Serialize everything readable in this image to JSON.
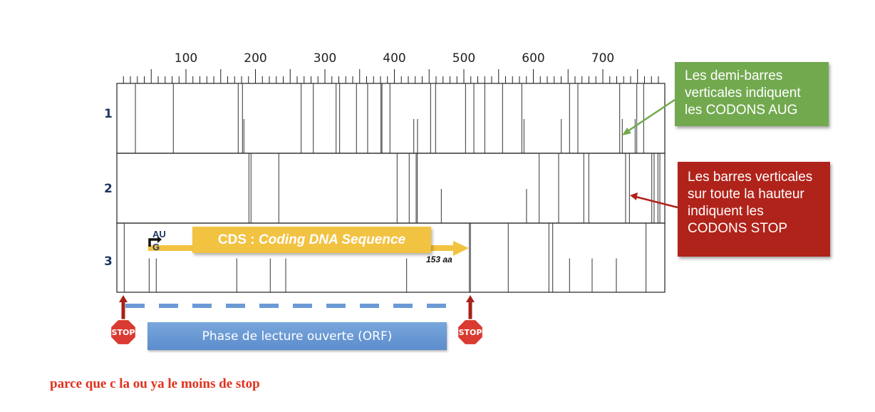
{
  "chart_data": {
    "type": "diagram",
    "axis": {
      "min": 0,
      "max": 789,
      "minor_step": 10,
      "major_step": 50,
      "tick_labels": [
        100,
        200,
        300,
        400,
        500,
        600,
        700
      ]
    },
    "rows": [
      {
        "label": "1",
        "stop_codons": [
          27.2,
          81.8,
          175.2,
          181.3,
          265.8,
          283.3,
          316.1,
          321.2,
          345.4,
          361.5,
          380.7,
          382.1,
          393.6,
          452.1,
          459.3,
          502.4,
          514.4,
          530.1,
          555.7,
          583.4,
          652.1,
          664.1,
          724.3,
          748.9,
          758.8
        ],
        "aug_codons": [
          183.4,
          427.9,
          433.3,
          586.5,
          640.2,
          728,
          746.5
        ]
      },
      {
        "label": "2",
        "stop_codons": [
          190.6,
          193.6,
          233.6,
          403.9,
          421.3,
          431.3,
          433,
          608.4,
          636.4,
          672.6,
          679.8,
          732.8,
          738.3,
          770.5,
          773.8,
          779.3,
          782.1
        ],
        "aug_codons": [
          467.5,
          590.2
        ]
      },
      {
        "label": "3",
        "stop_codons": [
          11.1,
          507.9,
          509.5,
          563.9,
          622.4,
          627.9,
          762.2
        ],
        "aug_codons": [
          47,
          57.2,
          173.1,
          221.3,
          243.6,
          417.6,
          652.1,
          684.6,
          719.5
        ]
      }
    ]
  },
  "cds": {
    "prefix": "CDS : ",
    "italic": "Coding DNA Sequence",
    "length": "153 aa",
    "start_top": "AU",
    "start_bottom": "G"
  },
  "callouts": {
    "aug": "Les demi-barres verticales indiquent les CODONS AUG",
    "stop": "Les barres verticales sur toute la hauteur indiquent les CODONS STOP"
  },
  "stop_sign_label": "STOP",
  "orf_label": "Phase de lecture ouverte (ORF)",
  "note": "parce que c la ou ya le moins de stop",
  "colors": {
    "green": "#72a94f",
    "red": "#b0231a",
    "yellow": "#f2c241",
    "blue": "#6b9ad6",
    "navy": "#1f3864",
    "note": "#e0321e"
  }
}
